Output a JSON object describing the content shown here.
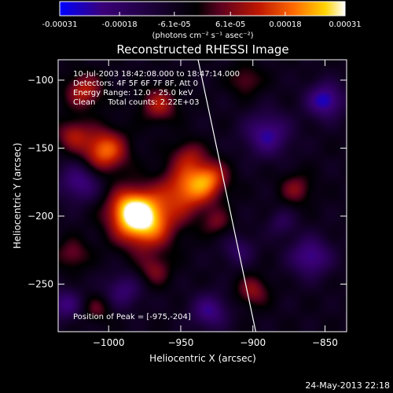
{
  "chart_data": {
    "type": "heatmap",
    "title": "Reconstructed RHESSI Image",
    "colorbar": {
      "ticks": [
        "-0.00031",
        "-0.00018",
        "-6.1e-05",
        "6.1e-05",
        "0.00018",
        "0.00031"
      ],
      "tick_values": [
        -0.00031,
        -0.00018,
        -6.1e-05,
        6.1e-05,
        0.00018,
        0.00031
      ],
      "unit_label": "(photons cm⁻² s⁻¹ asec⁻²)",
      "range": [
        -0.00031,
        0.00031
      ],
      "colors": [
        "#0000ff",
        "#3a0078",
        "#000000",
        "#5a0020",
        "#c01800",
        "#ff6a00",
        "#ffd400",
        "#ffffff"
      ]
    },
    "annotations": [
      "10-Jul-2003 18:42:08.000 to 18:47:14.000",
      "Detectors: 4F 5F 6F 7F 8F, Att 0",
      "Energy Range: 12.0 - 25.0 keV",
      "Clean     Total counts: 2.22E+03"
    ],
    "peak_label": "Position of Peak = [-975,-204]",
    "peak": [
      -975,
      -204
    ],
    "xlabel": "Heliocentric X (arcsec)",
    "ylabel": "Heliocentric Y (arcsec)",
    "xlim": [
      -1035,
      -835
    ],
    "ylim": [
      -285,
      -85
    ],
    "xticks": [
      -1000,
      -950,
      -900,
      -850
    ],
    "yticks": [
      -100,
      -150,
      -200,
      -250
    ],
    "limb_line": [
      [
        -938,
        -85
      ],
      [
        -898,
        -285
      ]
    ],
    "sources": [
      {
        "x": -975,
        "y": -204,
        "amp": 1.0,
        "s": 14
      },
      {
        "x": -985,
        "y": -195,
        "amp": 0.7,
        "s": 11
      },
      {
        "x": -945,
        "y": -180,
        "amp": 0.75,
        "s": 13
      },
      {
        "x": -930,
        "y": -172,
        "amp": 0.55,
        "s": 9
      },
      {
        "x": -1003,
        "y": -152,
        "amp": 0.8,
        "s": 11
      },
      {
        "x": -1017,
        "y": -108,
        "amp": 0.55,
        "s": 9
      },
      {
        "x": -1025,
        "y": -140,
        "amp": 0.45,
        "s": 8
      },
      {
        "x": -965,
        "y": -118,
        "amp": 0.5,
        "s": 9
      },
      {
        "x": -945,
        "y": -155,
        "amp": 0.35,
        "s": 8
      },
      {
        "x": -968,
        "y": -240,
        "amp": 0.35,
        "s": 8
      },
      {
        "x": -1025,
        "y": -228,
        "amp": 0.35,
        "s": 8
      },
      {
        "x": -1008,
        "y": -268,
        "amp": 0.3,
        "s": 7
      },
      {
        "x": -900,
        "y": -255,
        "amp": 0.42,
        "s": 8
      },
      {
        "x": -870,
        "y": -180,
        "amp": 0.38,
        "s": 8
      },
      {
        "x": -905,
        "y": -100,
        "amp": 0.32,
        "s": 8
      },
      {
        "x": -925,
        "y": -205,
        "amp": 0.3,
        "s": 7
      },
      {
        "x": -890,
        "y": -140,
        "amp": -0.6,
        "s": 11
      },
      {
        "x": -850,
        "y": -115,
        "amp": -0.7,
        "s": 9
      },
      {
        "x": -860,
        "y": -230,
        "amp": -0.6,
        "s": 10
      },
      {
        "x": -1020,
        "y": -175,
        "amp": -0.55,
        "s": 10
      },
      {
        "x": -1030,
        "y": -265,
        "amp": -0.5,
        "s": 8
      },
      {
        "x": -990,
        "y": -255,
        "amp": -0.45,
        "s": 9
      },
      {
        "x": -930,
        "y": -270,
        "amp": -0.55,
        "s": 9
      },
      {
        "x": -910,
        "y": -225,
        "amp": -0.35,
        "s": 8
      },
      {
        "x": -880,
        "y": -205,
        "amp": -0.3,
        "s": 7
      }
    ]
  },
  "footer": {
    "timestamp": "24-May-2013 22:18"
  }
}
